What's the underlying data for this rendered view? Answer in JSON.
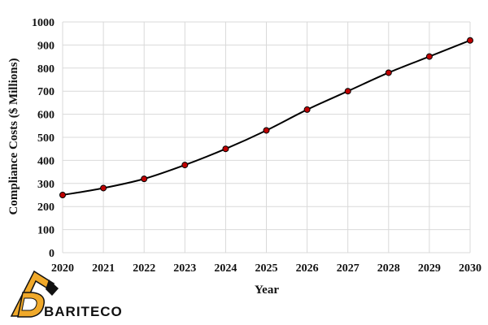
{
  "chart_data": {
    "type": "line",
    "title": "",
    "xlabel": "Year",
    "ylabel": "Compliance Costs ($ Millions)",
    "x": [
      2020,
      2021,
      2022,
      2023,
      2024,
      2025,
      2026,
      2027,
      2028,
      2029,
      2030
    ],
    "series": [
      {
        "values": [
          250,
          280,
          320,
          380,
          450,
          530,
          620,
          700,
          780,
          850,
          920
        ]
      }
    ],
    "xlim": [
      2020,
      2030
    ],
    "ylim": [
      0,
      1000
    ],
    "yticks": [
      0,
      100,
      200,
      300,
      400,
      500,
      600,
      700,
      800,
      900,
      1000
    ],
    "grid": true,
    "legend": "none",
    "colors": {
      "line": "#000000",
      "marker": "#c00000",
      "grid": "#d9d9d9"
    }
  },
  "logo": {
    "text": "BARITECO",
    "colors": {
      "emblem": "#f0a92a",
      "text": "#111111"
    }
  }
}
